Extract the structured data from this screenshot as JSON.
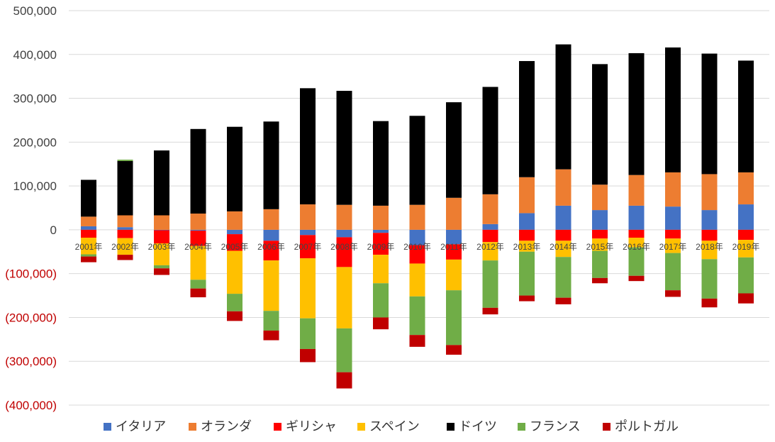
{
  "chart_data": {
    "type": "bar",
    "stacked": true,
    "categories": [
      "2001年",
      "2002年",
      "2003年",
      "2004年",
      "2005年",
      "2006年",
      "2007年",
      "2008年",
      "2009年",
      "2010年",
      "2011年",
      "2012年",
      "2013年",
      "2014年",
      "2015年",
      "2016年",
      "2017年",
      "2018年",
      "2019年"
    ],
    "ylim": [
      -400000,
      500000
    ],
    "yticks": [
      500000,
      400000,
      300000,
      200000,
      100000,
      0,
      -100000,
      -200000,
      -300000,
      -400000
    ],
    "ytick_labels": [
      "500,000",
      "400,000",
      "300,000",
      "200,000",
      "100,000",
      "0",
      "(100,000)",
      "(200,000)",
      "(300,000)",
      "(400,000)"
    ],
    "negative_tick_color": "#c00000",
    "positive_tick_color": "#404040",
    "grid": true,
    "legend_position": "bottom",
    "series": [
      {
        "name": "イタリア",
        "color": "#4472c4",
        "values": [
          8000,
          6000,
          -1000,
          -2000,
          -10000,
          -25000,
          -12000,
          -17000,
          -7000,
          -35000,
          -33000,
          13000,
          38000,
          55000,
          45000,
          55000,
          53000,
          45000,
          58000
        ]
      },
      {
        "name": "オランダ",
        "color": "#ed7d31",
        "values": [
          22000,
          27000,
          33000,
          37000,
          42000,
          47000,
          58000,
          57000,
          55000,
          57000,
          73000,
          68000,
          82000,
          83000,
          58000,
          70000,
          78000,
          82000,
          73000
        ]
      },
      {
        "name": "ギリシャ",
        "color": "#ff0000",
        "values": [
          -18000,
          -19000,
          -30000,
          -35000,
          -38000,
          -45000,
          -53000,
          -68000,
          -50000,
          -42000,
          -35000,
          -28000,
          -25000,
          -25000,
          -20000,
          -18000,
          -20000,
          -25000,
          -23000
        ]
      },
      {
        "name": "スペイン",
        "color": "#ffc000",
        "values": [
          -38000,
          -38000,
          -50000,
          -77000,
          -98000,
          -115000,
          -137000,
          -140000,
          -65000,
          -75000,
          -70000,
          -42000,
          -25000,
          -37000,
          -28000,
          -22000,
          -33000,
          -42000,
          -40000
        ]
      },
      {
        "name": "ドイツ",
        "color": "#000000",
        "values": [
          84000,
          124000,
          148000,
          193000,
          193000,
          200000,
          265000,
          260000,
          193000,
          203000,
          218000,
          245000,
          265000,
          285000,
          275000,
          278000,
          285000,
          275000,
          255000
        ]
      },
      {
        "name": "フランス",
        "color": "#70ad47",
        "values": [
          -5000,
          3000,
          -7000,
          -20000,
          -40000,
          -45000,
          -70000,
          -100000,
          -78000,
          -88000,
          -125000,
          -108000,
          -100000,
          -93000,
          -62000,
          -65000,
          -85000,
          -90000,
          -82000
        ]
      },
      {
        "name": "ポルトガル",
        "color": "#c00000",
        "values": [
          -13000,
          -12000,
          -15000,
          -20000,
          -22000,
          -22000,
          -30000,
          -37000,
          -27000,
          -27000,
          -22000,
          -15000,
          -13000,
          -15000,
          -12000,
          -12000,
          -15000,
          -20000,
          -23000
        ]
      }
    ]
  }
}
